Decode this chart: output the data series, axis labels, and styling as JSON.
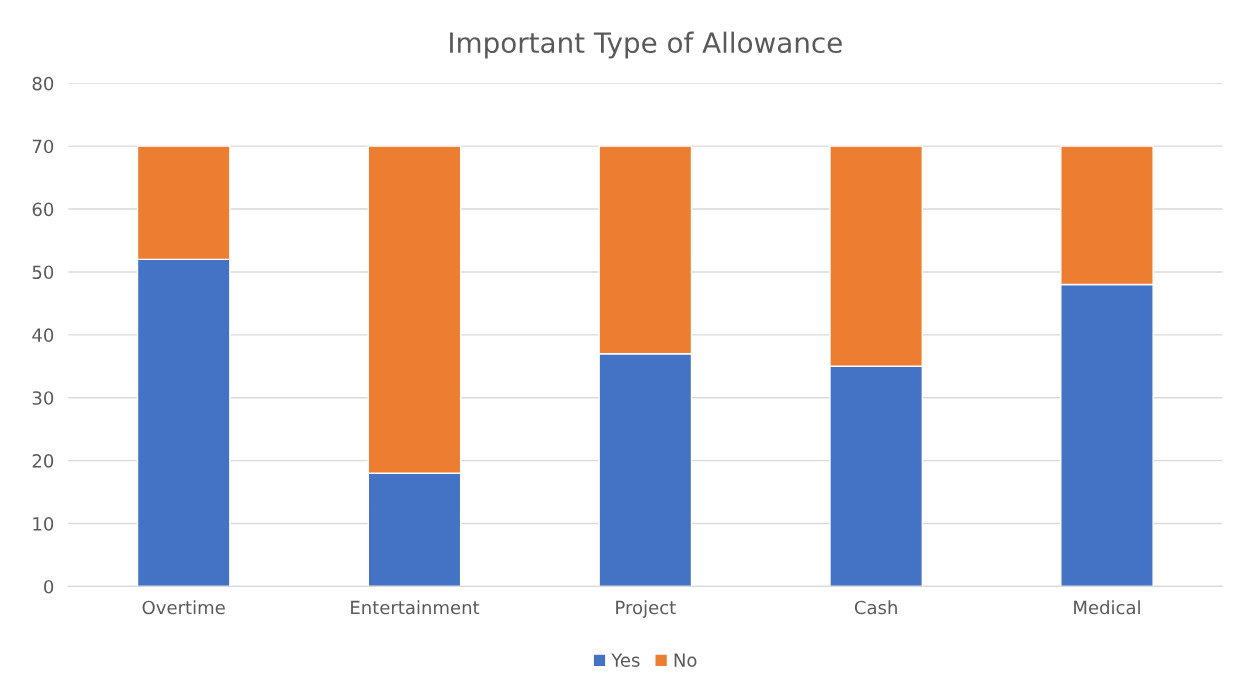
{
  "chart_data": {
    "type": "bar",
    "title": "Important Type of Allowance",
    "stacked": true,
    "categories": [
      "Overtime",
      "Entertainment",
      "Project",
      "Cash",
      "Medical"
    ],
    "series": [
      {
        "name": "Yes",
        "color": "#4472c4",
        "values": [
          52,
          18,
          37,
          35,
          48
        ]
      },
      {
        "name": "No",
        "color": "#ed7d31",
        "values": [
          18,
          52,
          33,
          35,
          22
        ]
      }
    ],
    "ylim": [
      0,
      80
    ],
    "yticks": [
      0,
      10,
      20,
      30,
      40,
      50,
      60,
      70,
      80
    ],
    "grid": "y",
    "legend": "bottom"
  }
}
